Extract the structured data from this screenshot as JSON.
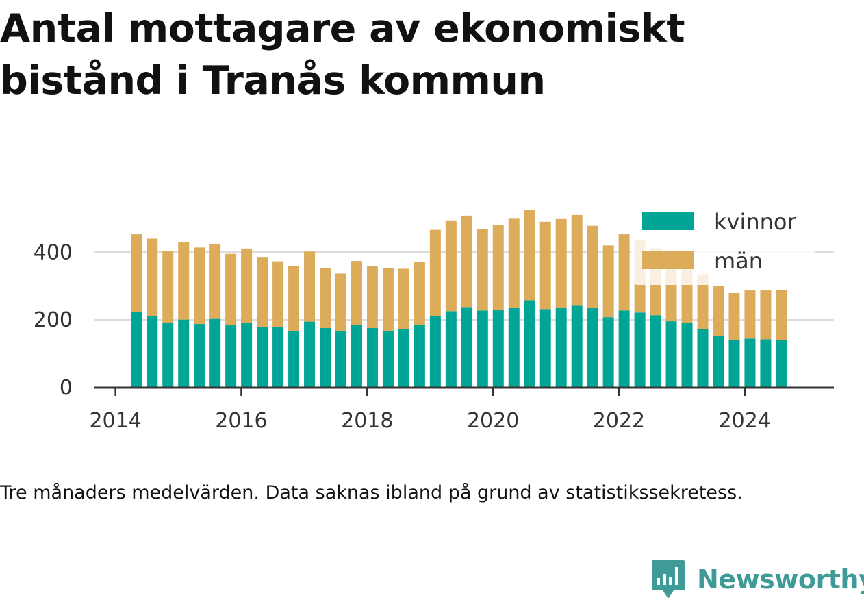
{
  "title": "Antal mottagare av ekonomiskt bistånd i Tranås kommun",
  "note": "Tre månaders medelvärden. Data saknas ibland på grund av statistikssekretess.",
  "brand": {
    "name": "Newsworthy",
    "color": "#3f9b97"
  },
  "colors": {
    "kvinnor": "#00a596",
    "man": "#dcac5b",
    "grid": "#dddddd",
    "axis": "#333333"
  },
  "chart_data": {
    "type": "bar",
    "stacked": true,
    "x_start": "2014-05",
    "x_step_months": 3,
    "x_range": [
      "2013-09",
      "2025-06"
    ],
    "x_ticks": [
      "2014",
      "2016",
      "2018",
      "2020",
      "2022",
      "2024"
    ],
    "y_ticks": [
      0,
      200,
      400
    ],
    "ylim": [
      0,
      530
    ],
    "grid": true,
    "legend": "top-right",
    "series": [
      {
        "name": "kvinnor",
        "values": [
          223,
          212,
          192,
          201,
          188,
          203,
          184,
          192,
          178,
          178,
          166,
          195,
          176,
          166,
          186,
          176,
          168,
          173,
          186,
          212,
          226,
          238,
          228,
          230,
          236,
          258,
          232,
          235,
          242,
          235,
          208,
          228,
          222,
          214,
          196,
          192,
          173,
          153,
          142,
          145,
          143,
          140
        ]
      },
      {
        "name": "män",
        "values": [
          230,
          228,
          211,
          228,
          226,
          222,
          211,
          219,
          208,
          195,
          193,
          207,
          178,
          171,
          188,
          182,
          186,
          178,
          186,
          254,
          268,
          270,
          240,
          250,
          263,
          266,
          258,
          263,
          268,
          243,
          212,
          225,
          213,
          198,
          180,
          180,
          162,
          147,
          137,
          143,
          146,
          148
        ]
      }
    ]
  }
}
